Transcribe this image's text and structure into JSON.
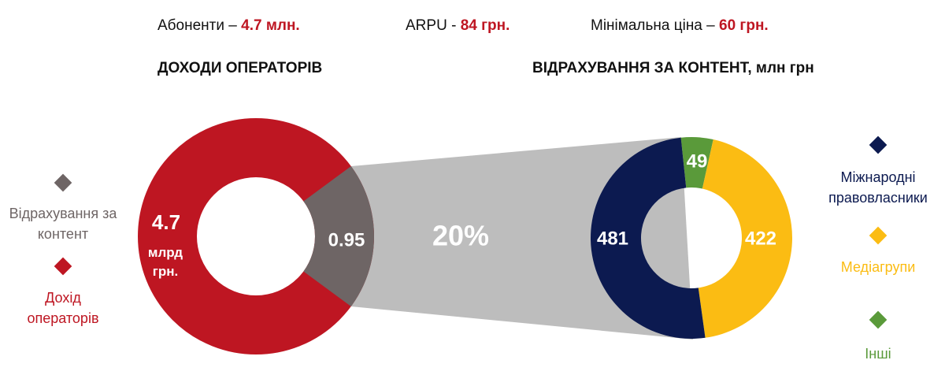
{
  "header": [
    {
      "label": "Абоненти –",
      "value": "4.7 млн."
    },
    {
      "label": "ARPU -",
      "value": "84 грн."
    },
    {
      "label": "Мінімальна ціна –",
      "value": "60 грн."
    }
  ],
  "chart_data": [
    {
      "type": "donut",
      "title": "ДОХОДИ ОПЕРАТОРІВ",
      "total": 4.7,
      "total_unit": "млрд грн.",
      "total_name": "Дохід операторів",
      "total_color": "#be1622",
      "slice": {
        "name": "Відрахування за контент",
        "value": 0.95,
        "color": "#6e6565"
      },
      "share_label": "20%"
    },
    {
      "type": "donut",
      "title": "ВІДРАХУВАННЯ ЗА КОНТЕНТ, млн грн",
      "categories": [
        "Міжнародні правовласники",
        "Медіагрупи",
        "Інші"
      ],
      "values": [
        481,
        422,
        49
      ],
      "colors": [
        "#0c1a50",
        "#fbbc13",
        "#5a9a3a"
      ]
    }
  ]
}
